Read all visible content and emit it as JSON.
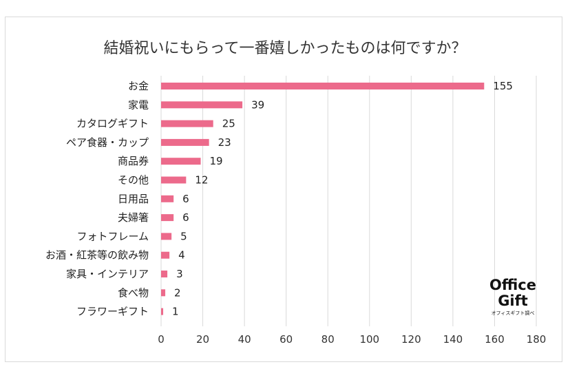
{
  "chart_data": {
    "type": "bar",
    "orientation": "horizontal",
    "title": "結婚祝いにもらって一番嬉しかったものは何ですか？",
    "categories": [
      "お金",
      "家電",
      "カタログギフト",
      "ペア食器・カップ",
      "商品券",
      "その他",
      "日用品",
      "夫婦箸",
      "フォトフレーム",
      "お酒・紅茶等の飲み物",
      "家具・インテリア",
      "食べ物",
      "フラワーギフト"
    ],
    "values": [
      155,
      39,
      25,
      23,
      19,
      12,
      6,
      6,
      5,
      4,
      3,
      2,
      1
    ],
    "xlim": [
      0,
      180
    ],
    "xticks": [
      0,
      20,
      40,
      60,
      80,
      100,
      120,
      140,
      160,
      180
    ],
    "grid": true,
    "legend": "none",
    "bar_color": "#ec6a8b"
  },
  "watermark": {
    "line1": "Office",
    "line2": "Gift",
    "line3": "オフィスギフト調べ"
  }
}
